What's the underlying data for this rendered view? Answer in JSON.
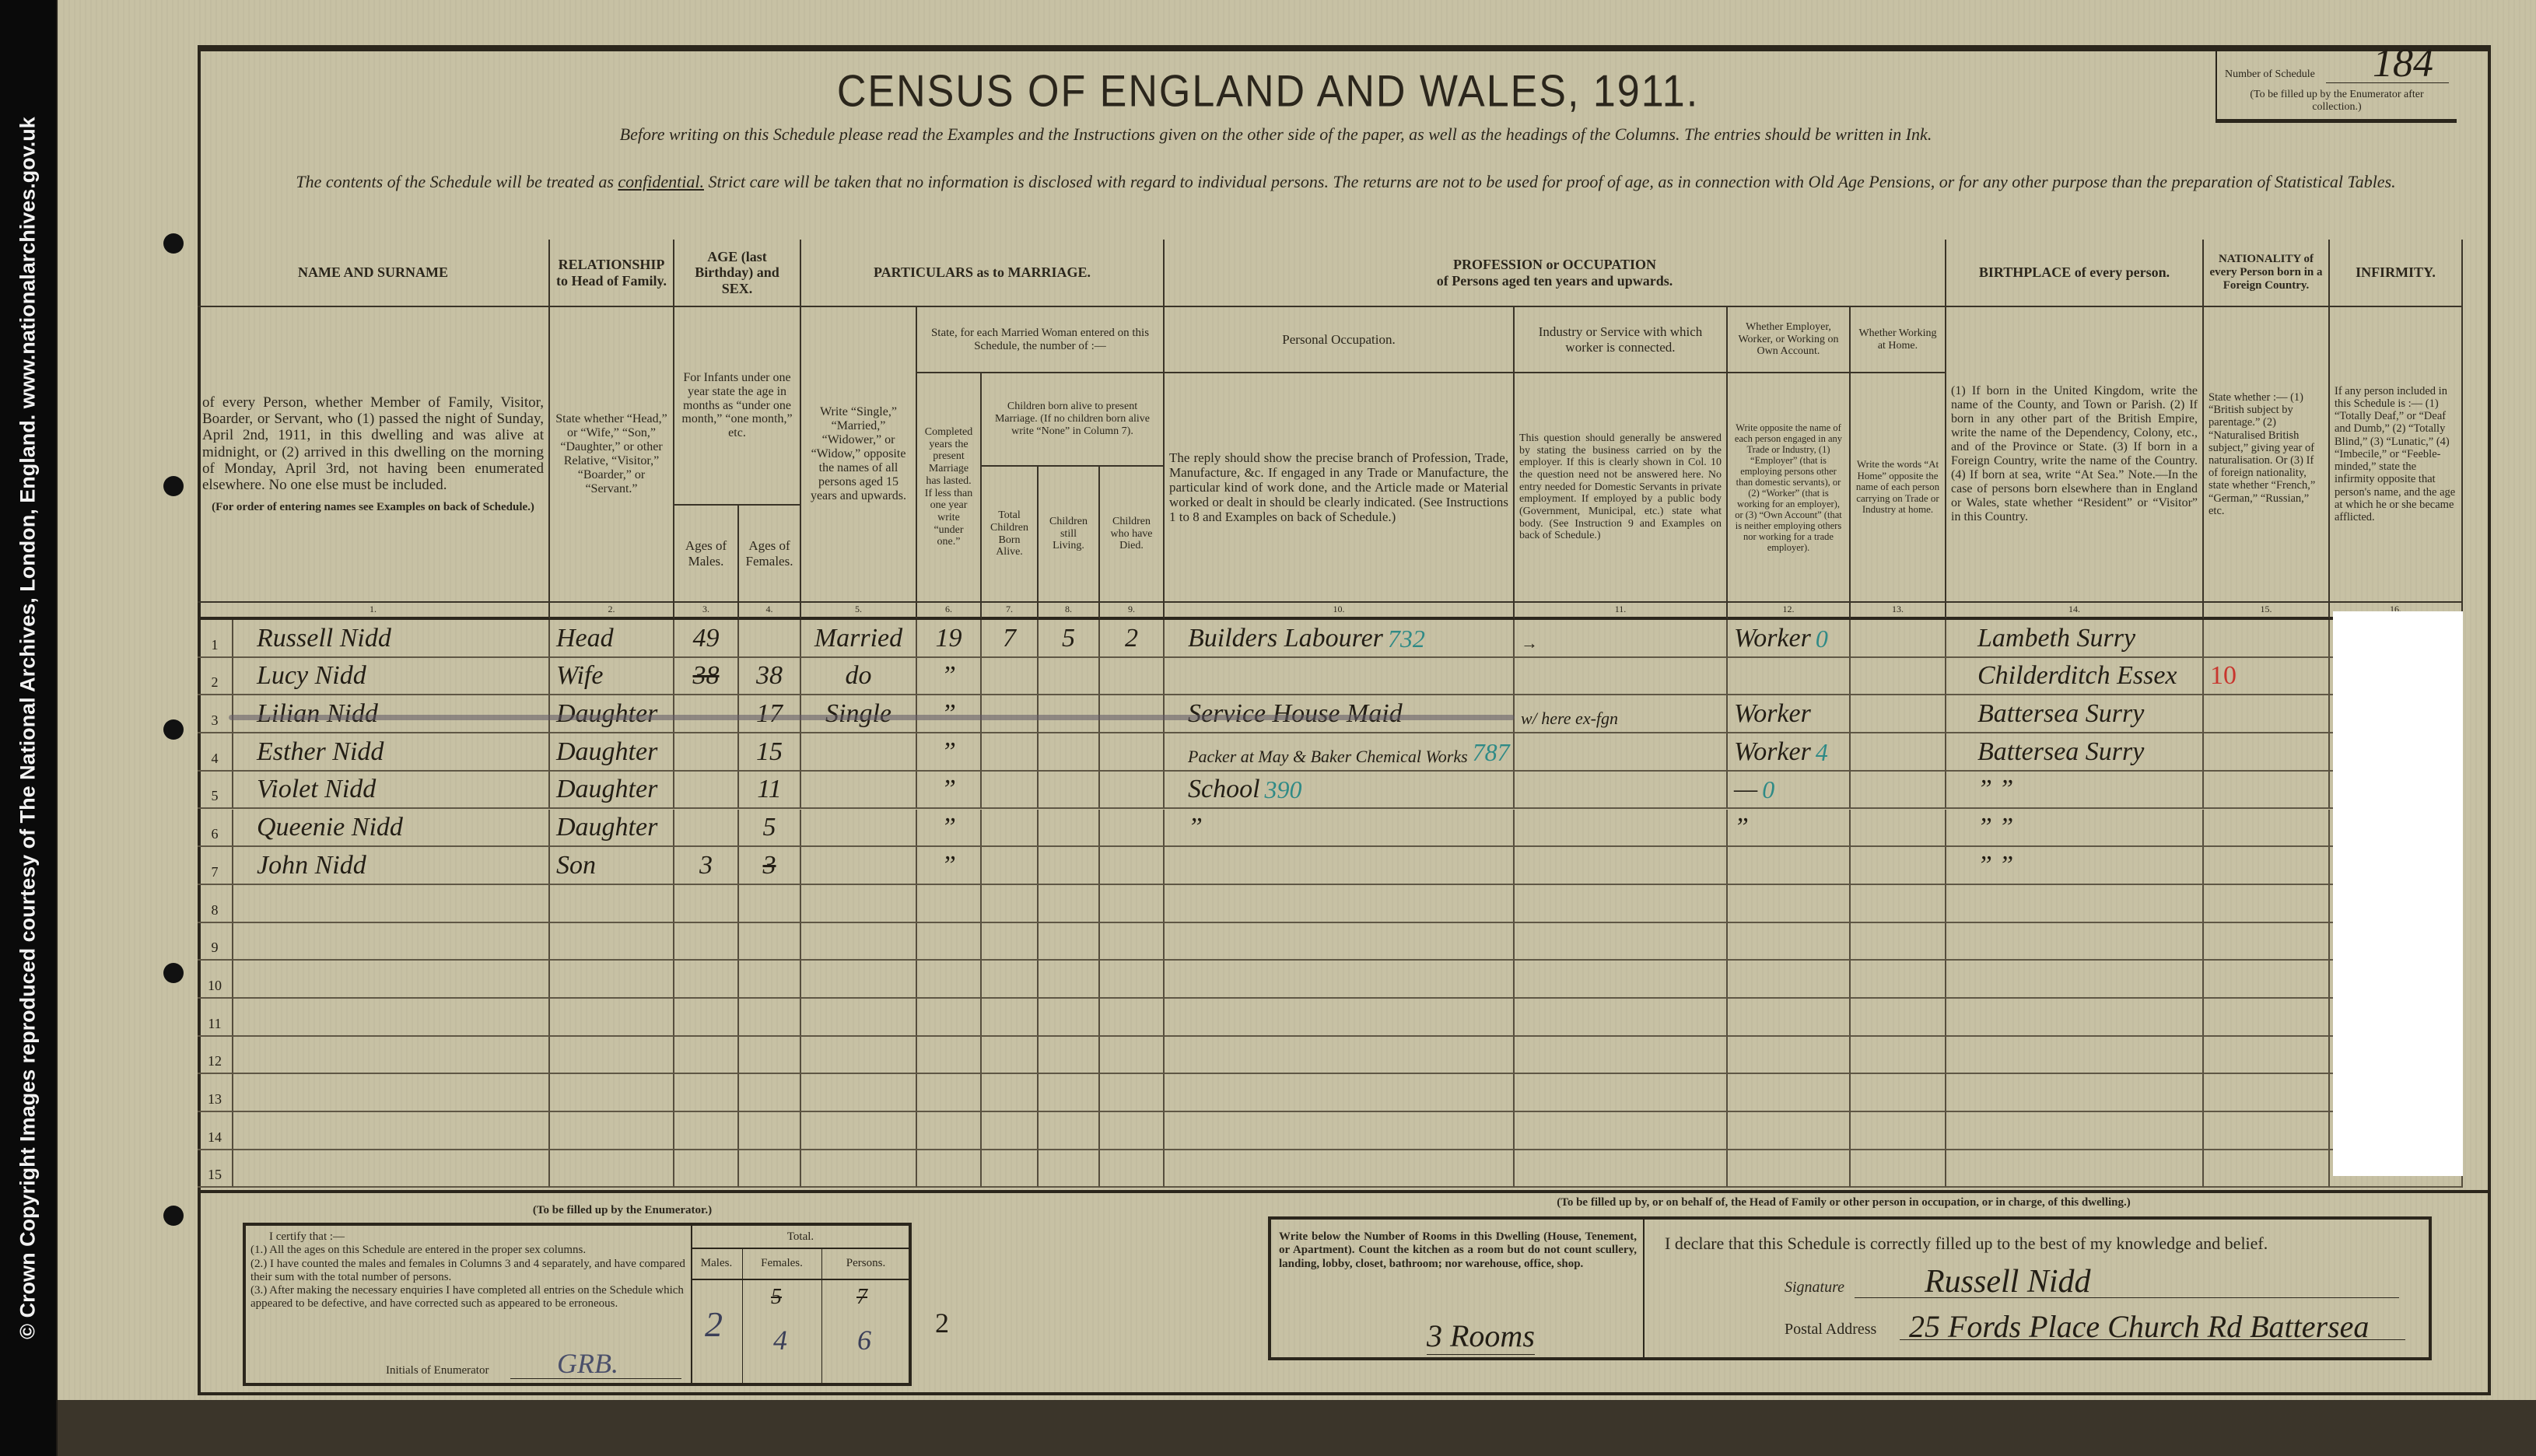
{
  "side_notice": "© Crown Copyright Images reproduced courtesy of The National Archives, London, England. www.nationalarchives.gov.uk",
  "document": {
    "title": "CENSUS OF ENGLAND AND WALES, 1911.",
    "instruction": "Before writing on this Schedule please read the Examples and the Instructions given on the other side of the paper, as well as the headings of the Columns. The entries should be written in Ink.",
    "confidential_pre": "The contents of the Schedule will be treated as ",
    "confidential_word": "confidential.",
    "confidential_post": " Strict care will be taken that no information is disclosed with regard to individual persons. The returns are not to be used for proof of age, as in connection with Old Age Pensions, or for any other purpose than the preparation of Statistical Tables.",
    "schedule_number_label": "Number of Schedule",
    "schedule_number": "184",
    "schedule_number_note": "(To be filled up by the Enumerator after collection.)"
  },
  "headers": {
    "name_title": "NAME AND SURNAME",
    "name_desc": "of every Person, whether Member of Family, Visitor, Boarder, or Servant, who (1) passed the night of Sunday, April 2nd, 1911, in this dwelling and was alive at midnight, or (2) arrived in this dwelling on the morning of Monday, April 3rd, not having been enumerated elsewhere. No one else must be included.",
    "name_note": "(For order of entering names see Examples on back of Schedule.)",
    "relationship_title": "RELATIONSHIP to Head of Family.",
    "relationship_desc": "State whether “Head,” or “Wife,” “Son,” “Daughter,” or other Relative, “Visitor,” “Boarder,” or “Servant.”",
    "age_title": "AGE (last Birthday) and SEX.",
    "age_desc": "For Infants under one year state the age in months as “under one month,” “one month,” etc.",
    "age_males": "Ages of Males.",
    "age_females": "Ages of Females.",
    "marriage_title": "PARTICULARS as to MARRIAGE.",
    "marital_desc": "Write “Single,” “Married,” “Widower,” or “Widow,” opposite the names of all persons aged 15 years and upwards.",
    "married_woman_desc": "State, for each Married Woman entered on this Schedule, the number of :—",
    "years_desc": "Completed years the present Marriage has lasted. If less than one year write “under one.”",
    "children_desc": "Children born alive to present Marriage. (If no children born alive write “None” in Column 7).",
    "children_total": "Total Children Born Alive.",
    "children_living": "Children still Living.",
    "children_died": "Children who have Died.",
    "profession_title": "PROFESSION or OCCUPATION",
    "profession_subtitle": "of Persons aged ten years and upwards.",
    "personal_occupation": "Personal Occupation.",
    "personal_occupation_desc": "The reply should show the precise branch of Profession, Trade, Manufacture, &c. If engaged in any Trade or Manufacture, the particular kind of work done, and the Article made or Material worked or dealt in should be clearly indicated. (See Instructions 1 to 8 and Examples on back of Schedule.)",
    "industry": "Industry or Service with which worker is connected.",
    "industry_desc": "This question should generally be answered by stating the business carried on by the employer. If this is clearly shown in Col. 10 the question need not be answered here. No entry needed for Domestic Servants in private employment. If employed by a public body (Government, Municipal, etc.) state what body. (See Instruction 9 and Examples on back of Schedule.)",
    "employer": "Whether Employer, Worker, or Working on Own Account.",
    "employer_desc": "Write opposite the name of each person engaged in any Trade or Industry, (1) “Employer” (that is employing persons other than domestic servants), or (2) “Worker” (that is working for an employer), or (3) “Own Account” (that is neither employing others nor working for a trade employer).",
    "home": "Whether Working at Home.",
    "home_desc": "Write the words “At Home” opposite the name of each person carrying on Trade or Industry at home.",
    "birthplace_title": "BIRTHPLACE of every person.",
    "birthplace_desc": "(1) If born in the United Kingdom, write the name of the County, and Town or Parish. (2) If born in any other part of the British Empire, write the name of the Dependency, Colony, etc., and of the Province or State. (3) If born in a Foreign Country, write the name of the Country. (4) If born at sea, write “At Sea.” Note.—In the case of persons born elsewhere than in England or Wales, state whether “Resident” or “Visitor” in this Country.",
    "nationality_title": "NATIONALITY of every Person born in a Foreign Country.",
    "nationality_desc": "State whether :— (1) “British subject by parentage.” (2) “Naturalised British subject,” giving year of naturalisation. Or (3) If of foreign nationality, state whether “French,” “German,” “Russian,” etc.",
    "infirmity_title": "INFIRMITY.",
    "infirmity_desc": "If any person included in this Schedule is :— (1) “Totally Deaf,” or “Deaf and Dumb,” (2) “Totally Blind,” (3) “Lunatic,” (4) “Imbecile,” or “Feeble-minded,” state the infirmity opposite that person's name, and the age at which he or she became afflicted."
  },
  "column_numbers": [
    "1.",
    "2.",
    "3.",
    "4.",
    "5.",
    "6.",
    "7.",
    "8.",
    "9.",
    "10.",
    "11.",
    "12.",
    "13.",
    "14.",
    "15.",
    "16."
  ],
  "row_numbers": [
    "1",
    "2",
    "3",
    "4",
    "5",
    "6",
    "7",
    "8",
    "9",
    "10",
    "11",
    "12",
    "13",
    "14",
    "15"
  ],
  "rows": [
    {
      "name": "Russell Nidd",
      "relationship": "Head",
      "age_male": "49",
      "age_female": "",
      "marital": "Married",
      "years_married": "19",
      "children_born": "7",
      "children_living": "5",
      "children_died": "2",
      "occupation": "Builders Labourer",
      "occupation_code": "732",
      "industry": "→",
      "employment": "Worker",
      "employment_code": "0",
      "at_home": "",
      "birthplace": "Lambeth Surry",
      "nationality": "",
      "struck": false
    },
    {
      "name": "Lucy Nidd",
      "relationship": "Wife",
      "age_male": "38",
      "age_male_struck": true,
      "age_female": "38",
      "marital": "do",
      "years_married": "”",
      "children_born": "",
      "children_living": "",
      "children_died": "",
      "occupation": "",
      "occupation_code": "",
      "industry": "",
      "employment": "",
      "employment_code": "",
      "at_home": "",
      "birthplace": "Childerditch Essex",
      "nationality": "10",
      "nationality_red": true,
      "struck": false
    },
    {
      "name": "Lilian Nidd",
      "relationship": "Daughter",
      "age_male": "",
      "age_female": "17",
      "marital": "Single",
      "years_married": "”",
      "children_born": "",
      "children_living": "",
      "children_died": "",
      "occupation": "Service House Maid",
      "occupation_code": "",
      "industry": "w/ here ex-fgn",
      "employment": "Worker",
      "employment_code": "",
      "at_home": "",
      "birthplace": "Battersea Surry",
      "nationality": "",
      "struck": true
    },
    {
      "name": "Esther Nidd",
      "relationship": "Daughter",
      "age_male": "",
      "age_female": "15",
      "marital": "",
      "years_married": "”",
      "children_born": "",
      "children_living": "",
      "children_died": "",
      "occupation": "Packer at May & Baker Chemical Works",
      "occupation_code": "787",
      "industry": "",
      "employment": "Worker",
      "employment_code": "4",
      "at_home": "",
      "birthplace": "Battersea Surry",
      "nationality": "",
      "struck": false
    },
    {
      "name": "Violet Nidd",
      "relationship": "Daughter",
      "age_male": "",
      "age_female": "11",
      "marital": "",
      "years_married": "”",
      "children_born": "",
      "children_living": "",
      "children_died": "",
      "occupation": "School",
      "occupation_code": "390",
      "industry": "",
      "employment": "—",
      "employment_code": "0",
      "at_home": "",
      "birthplace": "”  ”",
      "nationality": "",
      "struck": false
    },
    {
      "name": "Queenie Nidd",
      "relationship": "Daughter",
      "age_male": "",
      "age_female": "5",
      "marital": "",
      "years_married": "”",
      "children_born": "",
      "children_living": "",
      "children_died": "",
      "occupation": "”",
      "occupation_code": "",
      "industry": "",
      "employment": "”",
      "employment_code": "",
      "at_home": "",
      "birthplace": "”  ”",
      "nationality": "",
      "struck": false
    },
    {
      "name": "John Nidd",
      "relationship": "Son",
      "age_male": "3",
      "age_female": "3",
      "age_female_struck": true,
      "marital": "",
      "years_married": "”",
      "children_born": "",
      "children_living": "",
      "children_died": "",
      "occupation": "",
      "occupation_code": "",
      "industry": "",
      "employment": "",
      "employment_code": "",
      "at_home": "",
      "birthplace": "”  ”",
      "nationality": "",
      "struck": false
    }
  ],
  "enumerator": {
    "heading": "(To be filled up by the Enumerator.)",
    "certify": "I certify that :—",
    "item1": "(1.) All the ages on this Schedule are entered in the proper sex columns.",
    "item2": "(2.) I have counted the males and females in Columns 3 and 4 separately, and have compared their sum with the total number of persons.",
    "item3": "(3.) After making the necessary enquiries I have completed all entries on the Schedule which appeared to be defective, and have corrected such as appeared to be erroneous.",
    "initials_label": "Initials of Enumerator",
    "initials": "GRB.",
    "total_label": "Total.",
    "males_label": "Males.",
    "females_label": "Females.",
    "persons_label": "Persons.",
    "males": "2",
    "females_struck": "5",
    "females": "4",
    "persons_struck": "7",
    "persons": "6",
    "red_mark": "2"
  },
  "household": {
    "heading": "(To be filled up by, or on behalf of, the Head of Family or other person in occupation, or in charge, of this dwelling.)",
    "rooms_instruction": "Write below the Number of Rooms in this Dwelling (House, Tenement, or Apartment). Count the kitchen as a room but do not count scullery, landing, lobby, closet, bathroom; nor warehouse, office, shop.",
    "rooms": "3 Rooms",
    "declaration": "I declare that this Schedule is correctly filled up to the best of my knowledge and belief.",
    "signature_label": "Signature",
    "signature": "Russell Nidd",
    "address_label": "Postal Address",
    "address": "25 Fords Place Church Rd Battersea"
  },
  "colors": {
    "paper": "#c7c1a4",
    "ink": "#231e15",
    "code_ink": "#2f8a86",
    "red_ink": "#c8362e"
  }
}
